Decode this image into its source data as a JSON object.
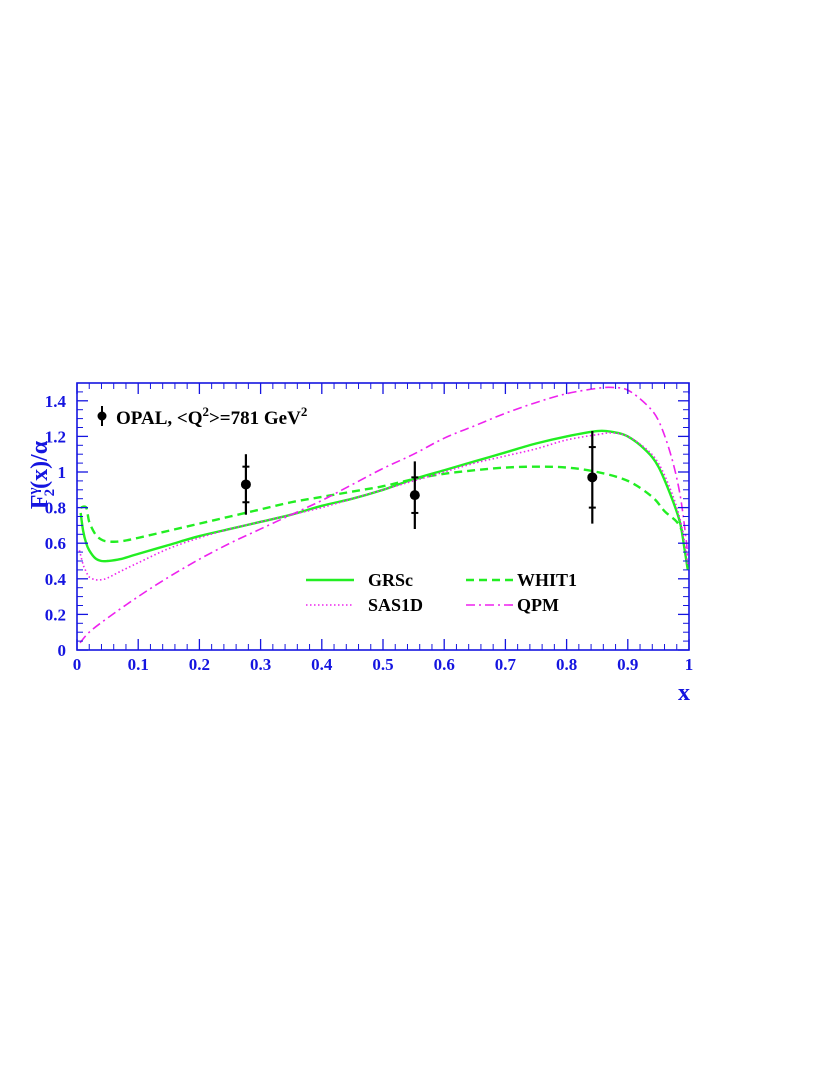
{
  "chart_data": {
    "type": "line",
    "xlim": [
      0,
      1
    ],
    "ylim": [
      0,
      1.5
    ],
    "x_ticks": [
      "0",
      "0.1",
      "0.2",
      "0.3",
      "0.4",
      "0.5",
      "0.6",
      "0.7",
      "0.8",
      "0.9",
      "1"
    ],
    "y_ticks": [
      "0",
      "0.2",
      "0.4",
      "0.6",
      "0.8",
      "1",
      "1.2",
      "1.4"
    ],
    "xlabel": "x",
    "ylabel": {
      "main": "F",
      "superscript": "γ",
      "subscript": "2",
      "tail": "(x)/α"
    },
    "grid": false,
    "data_legend": {
      "label_prefix": "OPAL, <Q",
      "label_sup1": "2",
      "label_mid": ">=781 GeV",
      "label_sup2": "2",
      "placement": "top-left"
    },
    "data_points": [
      {
        "x": 0.276,
        "y": 0.93,
        "stat_err": 0.1,
        "tot_err": 0.17
      },
      {
        "x": 0.552,
        "y": 0.87,
        "stat_err": 0.1,
        "tot_err": 0.19
      },
      {
        "x": 0.842,
        "y": 0.97,
        "stat_err": 0.17,
        "tot_err": 0.26
      }
    ],
    "legend_placement": "bottom-right",
    "series": [
      {
        "name": "GRSc",
        "color": "#22ee22",
        "style": "solid",
        "points": [
          [
            0.006,
            0.77
          ],
          [
            0.01,
            0.67
          ],
          [
            0.015,
            0.6
          ],
          [
            0.02,
            0.56
          ],
          [
            0.03,
            0.515
          ],
          [
            0.04,
            0.5
          ],
          [
            0.05,
            0.5
          ],
          [
            0.07,
            0.51
          ],
          [
            0.1,
            0.54
          ],
          [
            0.15,
            0.59
          ],
          [
            0.2,
            0.64
          ],
          [
            0.25,
            0.68
          ],
          [
            0.3,
            0.72
          ],
          [
            0.35,
            0.76
          ],
          [
            0.4,
            0.81
          ],
          [
            0.45,
            0.85
          ],
          [
            0.5,
            0.9
          ],
          [
            0.55,
            0.96
          ],
          [
            0.6,
            1.01
          ],
          [
            0.65,
            1.06
          ],
          [
            0.7,
            1.11
          ],
          [
            0.75,
            1.16
          ],
          [
            0.8,
            1.2
          ],
          [
            0.85,
            1.23
          ],
          [
            0.875,
            1.225
          ],
          [
            0.9,
            1.2
          ],
          [
            0.93,
            1.12
          ],
          [
            0.95,
            1.03
          ],
          [
            0.97,
            0.87
          ],
          [
            0.985,
            0.72
          ],
          [
            0.993,
            0.56
          ],
          [
            0.998,
            0.45
          ]
        ]
      },
      {
        "name": "WHIT1",
        "color": "#22ee22",
        "style": "dashed",
        "points": [
          [
            0.006,
            0.8
          ],
          [
            0.015,
            0.8
          ],
          [
            0.02,
            0.72
          ],
          [
            0.03,
            0.65
          ],
          [
            0.04,
            0.62
          ],
          [
            0.05,
            0.61
          ],
          [
            0.07,
            0.61
          ],
          [
            0.1,
            0.63
          ],
          [
            0.15,
            0.67
          ],
          [
            0.2,
            0.71
          ],
          [
            0.25,
            0.75
          ],
          [
            0.3,
            0.79
          ],
          [
            0.35,
            0.83
          ],
          [
            0.4,
            0.86
          ],
          [
            0.45,
            0.89
          ],
          [
            0.5,
            0.92
          ],
          [
            0.55,
            0.96
          ],
          [
            0.6,
            0.99
          ],
          [
            0.65,
            1.01
          ],
          [
            0.7,
            1.025
          ],
          [
            0.75,
            1.03
          ],
          [
            0.8,
            1.025
          ],
          [
            0.85,
            1.0
          ],
          [
            0.9,
            0.95
          ],
          [
            0.94,
            0.86
          ],
          [
            0.96,
            0.78
          ],
          [
            0.98,
            0.72
          ],
          [
            0.99,
            0.66
          ]
        ]
      },
      {
        "name": "SAS1D",
        "color": "#ee22ee",
        "style": "dotted",
        "points": [
          [
            0.004,
            0.56
          ],
          [
            0.01,
            0.48
          ],
          [
            0.015,
            0.44
          ],
          [
            0.02,
            0.41
          ],
          [
            0.03,
            0.395
          ],
          [
            0.04,
            0.395
          ],
          [
            0.05,
            0.405
          ],
          [
            0.07,
            0.44
          ],
          [
            0.1,
            0.49
          ],
          [
            0.15,
            0.57
          ],
          [
            0.2,
            0.63
          ],
          [
            0.25,
            0.68
          ],
          [
            0.3,
            0.72
          ],
          [
            0.35,
            0.76
          ],
          [
            0.4,
            0.8
          ],
          [
            0.45,
            0.85
          ],
          [
            0.5,
            0.9
          ],
          [
            0.55,
            0.95
          ],
          [
            0.6,
            1.0
          ],
          [
            0.65,
            1.05
          ],
          [
            0.7,
            1.09
          ],
          [
            0.75,
            1.13
          ],
          [
            0.8,
            1.18
          ],
          [
            0.85,
            1.21
          ],
          [
            0.875,
            1.22
          ],
          [
            0.9,
            1.2
          ],
          [
            0.93,
            1.13
          ],
          [
            0.95,
            1.05
          ],
          [
            0.97,
            0.9
          ],
          [
            0.985,
            0.74
          ],
          [
            0.995,
            0.56
          ],
          [
            0.998,
            0.47
          ]
        ]
      },
      {
        "name": "QPM",
        "color": "#ee22ee",
        "style": "dashdot",
        "points": [
          [
            0.005,
            0.04
          ],
          [
            0.02,
            0.1
          ],
          [
            0.05,
            0.18
          ],
          [
            0.1,
            0.3
          ],
          [
            0.15,
            0.41
          ],
          [
            0.2,
            0.51
          ],
          [
            0.25,
            0.6
          ],
          [
            0.3,
            0.68
          ],
          [
            0.35,
            0.76
          ],
          [
            0.4,
            0.84
          ],
          [
            0.45,
            0.93
          ],
          [
            0.5,
            1.02
          ],
          [
            0.55,
            1.1
          ],
          [
            0.6,
            1.19
          ],
          [
            0.65,
            1.26
          ],
          [
            0.7,
            1.33
          ],
          [
            0.75,
            1.39
          ],
          [
            0.8,
            1.44
          ],
          [
            0.85,
            1.47
          ],
          [
            0.875,
            1.475
          ],
          [
            0.9,
            1.46
          ],
          [
            0.93,
            1.38
          ],
          [
            0.95,
            1.29
          ],
          [
            0.97,
            1.1
          ],
          [
            0.985,
            0.88
          ],
          [
            0.995,
            0.63
          ],
          [
            0.998,
            0.52
          ]
        ]
      }
    ]
  }
}
